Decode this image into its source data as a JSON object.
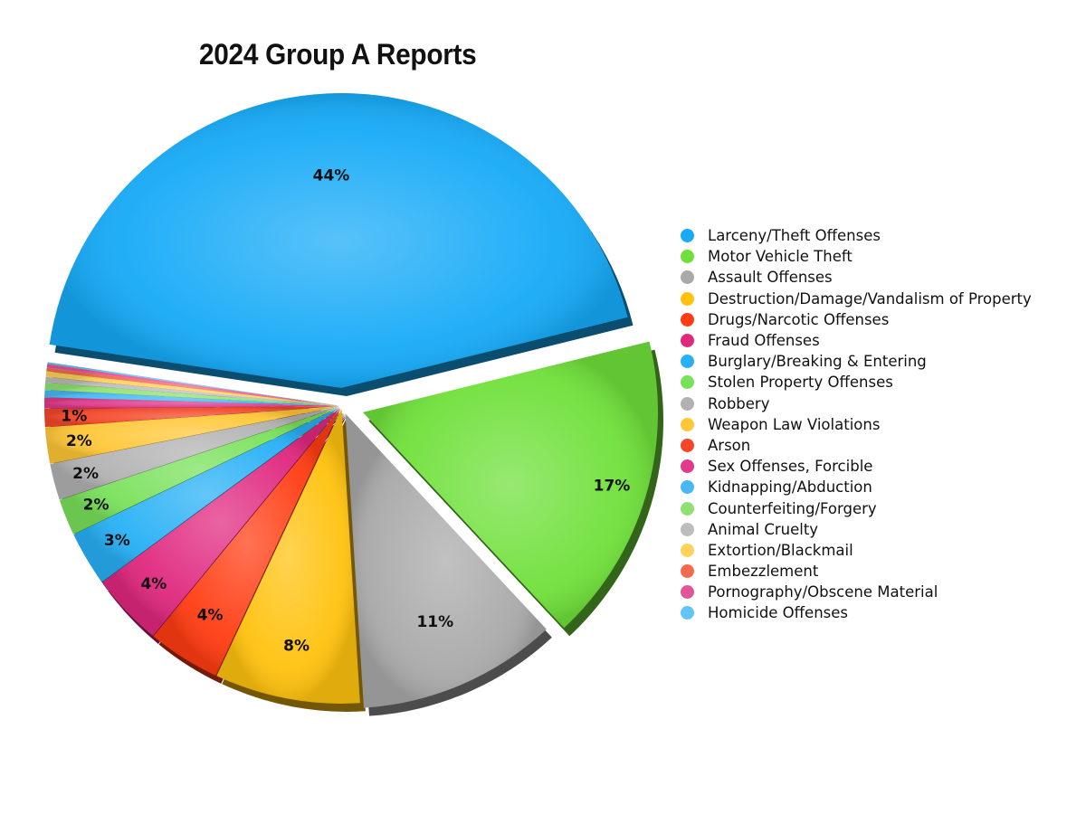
{
  "chart_data": {
    "type": "pie",
    "title": "2024 Group A Reports",
    "legend_position": "right",
    "slices": [
      {
        "name": "Larceny/Theft Offenses",
        "value": 44,
        "label": "44%",
        "color": "#16aaf7"
      },
      {
        "name": "Motor Vehicle Theft",
        "value": 17,
        "label": "17%",
        "color": "#6fe03a"
      },
      {
        "name": "Assault Offenses",
        "value": 11,
        "label": "11%",
        "color": "#a9a9a9"
      },
      {
        "name": "Destruction/Damage/Vandalism of Property",
        "value": 8,
        "label": "8%",
        "color": "#ffc20e"
      },
      {
        "name": "Drugs/Narcotic Offenses",
        "value": 4,
        "label": "4%",
        "color": "#ff3c12"
      },
      {
        "name": "Fraud Offenses",
        "value": 4,
        "label": "4%",
        "color": "#e0287f"
      },
      {
        "name": "Burglary/Breaking & Entering",
        "value": 3,
        "label": "3%",
        "color": "#27b0f5"
      },
      {
        "name": "Stolen Property Offenses",
        "value": 2,
        "label": "2%",
        "color": "#78e15a"
      },
      {
        "name": "Robbery",
        "value": 2,
        "label": "2%",
        "color": "#b2b2b2"
      },
      {
        "name": "Weapon Law Violations",
        "value": 2,
        "label": "2%",
        "color": "#ffc737"
      },
      {
        "name": "Arson",
        "value": 1,
        "label": "1%",
        "color": "#f4472a"
      },
      {
        "name": "Sex Offenses, Forcible",
        "value": 0.6,
        "label": "",
        "color": "#e03a8c"
      },
      {
        "name": "Kidnapping/Abduction",
        "value": 0.4,
        "label": "",
        "color": "#48b8f5"
      },
      {
        "name": "Counterfeiting/Forgery",
        "value": 0.4,
        "label": "",
        "color": "#8fe272"
      },
      {
        "name": "Animal Cruelty",
        "value": 0.3,
        "label": "",
        "color": "#bdbdbd"
      },
      {
        "name": "Extortion/Blackmail",
        "value": 0.3,
        "label": "",
        "color": "#ffd25a"
      },
      {
        "name": "Embezzlement",
        "value": 0.2,
        "label": "",
        "color": "#f46a4e"
      },
      {
        "name": "Pornography/Obscene Material",
        "value": 0.2,
        "label": "",
        "color": "#e25699"
      },
      {
        "name": "Homicide Offenses",
        "value": 0.1,
        "label": "",
        "color": "#62c4f7"
      }
    ]
  }
}
